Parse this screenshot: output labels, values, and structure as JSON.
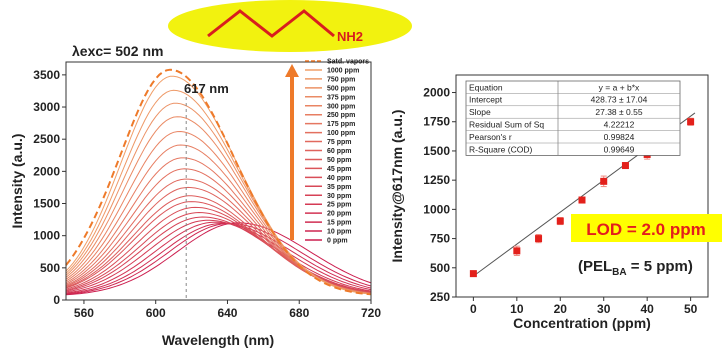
{
  "colors": {
    "accent_orange": "#ee7a2a",
    "dark_red": "#cc1f4f",
    "molecule_bg": "#f2f20f",
    "molecule_line": "#d81e1e",
    "lod_bg": "#ffff00",
    "lod_text": "#e31d1d",
    "marker": "#e3201b"
  },
  "molecule": {
    "nh2_label": "NH2"
  },
  "chart_data": [
    {
      "type": "line",
      "excitation_label": "λexc= 502 nm",
      "peak_label": "617 nm",
      "xlabel": "Wavelength (nm)",
      "ylabel": "Intensity (a.u.)",
      "xlim": [
        550,
        720
      ],
      "ylim": [
        0,
        3700
      ],
      "xticks": [
        560,
        600,
        640,
        680,
        720
      ],
      "yticks": [
        0,
        500,
        1000,
        1500,
        2000,
        2500,
        3000,
        3500
      ],
      "peak_marker_x": 617,
      "legend_position": "top-right",
      "series": [
        {
          "name": "Satd. vapors",
          "peak_nm": 608,
          "peak_intensity": 3520,
          "dashed": true
        },
        {
          "name": "1000 ppm",
          "peak_nm": 609,
          "peak_intensity": 3420
        },
        {
          "name": "750 ppm",
          "peak_nm": 610,
          "peak_intensity": 3200
        },
        {
          "name": "500 ppm",
          "peak_nm": 611,
          "peak_intensity": 3000
        },
        {
          "name": "375 ppm",
          "peak_nm": 612,
          "peak_intensity": 2790
        },
        {
          "name": "300 ppm",
          "peak_nm": 613,
          "peak_intensity": 2560
        },
        {
          "name": "250 ppm",
          "peak_nm": 614,
          "peak_intensity": 2350
        },
        {
          "name": "175 ppm",
          "peak_nm": 615,
          "peak_intensity": 2150
        },
        {
          "name": "100 ppm",
          "peak_nm": 616,
          "peak_intensity": 1980
        },
        {
          "name": "75 ppm",
          "peak_nm": 617,
          "peak_intensity": 1820
        },
        {
          "name": "60 ppm",
          "peak_nm": 618,
          "peak_intensity": 1690
        },
        {
          "name": "50 ppm",
          "peak_nm": 619,
          "peak_intensity": 1560
        },
        {
          "name": "45 ppm",
          "peak_nm": 620,
          "peak_intensity": 1470
        },
        {
          "name": "40 ppm",
          "peak_nm": 622,
          "peak_intensity": 1380
        },
        {
          "name": "35 ppm",
          "peak_nm": 624,
          "peak_intensity": 1300
        },
        {
          "name": "30 ppm",
          "peak_nm": 626,
          "peak_intensity": 1230
        },
        {
          "name": "25 ppm",
          "peak_nm": 629,
          "peak_intensity": 1180
        },
        {
          "name": "20 ppm",
          "peak_nm": 633,
          "peak_intensity": 1150
        },
        {
          "name": "15 ppm",
          "peak_nm": 637,
          "peak_intensity": 1130
        },
        {
          "name": "10 ppm",
          "peak_nm": 641,
          "peak_intensity": 1130
        },
        {
          "name": "0 ppm",
          "peak_nm": 646,
          "peak_intensity": 1140
        }
      ]
    },
    {
      "type": "scatter",
      "xlabel": "Concentration (ppm)",
      "ylabel": "Intensity@617nm (a.u.)",
      "xlim": [
        -4,
        54
      ],
      "ylim": [
        250,
        2150
      ],
      "xticks": [
        0,
        10,
        20,
        30,
        40,
        50
      ],
      "yticks": [
        250,
        500,
        750,
        1000,
        1250,
        1500,
        1750,
        2000
      ],
      "x": [
        0,
        10,
        15,
        20,
        25,
        30,
        35,
        40,
        45,
        50
      ],
      "y": [
        450,
        645,
        750,
        900,
        1080,
        1240,
        1375,
        1470,
        1625,
        1750
      ],
      "error": [
        15,
        40,
        35,
        30,
        25,
        45,
        25,
        40,
        25,
        30
      ],
      "fit": {
        "intercept": 428.73,
        "slope": 27.38
      },
      "fit_table": [
        [
          "Equation",
          "y = a + b*x"
        ],
        [
          "Intercept",
          "428.73 ± 17.04"
        ],
        [
          "Slope",
          "27.38 ± 0.55"
        ],
        [
          "Residual Sum of Sq",
          "4.22212"
        ],
        [
          "Pearson's r",
          "0.99824"
        ],
        [
          "R-Square (COD)",
          "0.99649"
        ]
      ],
      "lod_label": "LOD = 2.0 ppm",
      "pel_label": "(PELBA = 5 ppm)"
    }
  ]
}
